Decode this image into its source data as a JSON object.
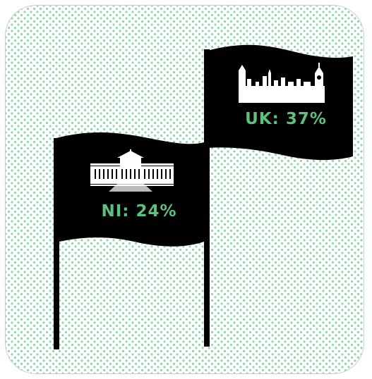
{
  "flags": [
    {
      "label": "NI: 24%",
      "building": "stormont-parliament-building-icon"
    },
    {
      "label": "UK: 37%",
      "building": "westminster-skyline-icon"
    }
  ],
  "colors": {
    "flag": "#000000",
    "text": "#5cc17f",
    "dots": "#8fd6ad",
    "background": "#ffffff"
  }
}
